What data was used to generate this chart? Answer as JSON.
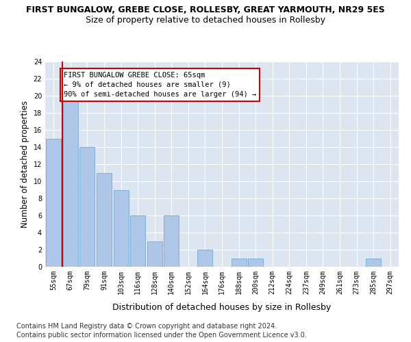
{
  "title1": "FIRST BUNGALOW, GREBE CLOSE, ROLLESBY, GREAT YARMOUTH, NR29 5ES",
  "title2": "Size of property relative to detached houses in Rollesby",
  "xlabel": "Distribution of detached houses by size in Rollesby",
  "ylabel": "Number of detached properties",
  "categories": [
    "55sqm",
    "67sqm",
    "79sqm",
    "91sqm",
    "103sqm",
    "116sqm",
    "128sqm",
    "140sqm",
    "152sqm",
    "164sqm",
    "176sqm",
    "188sqm",
    "200sqm",
    "212sqm",
    "224sqm",
    "237sqm",
    "249sqm",
    "261sqm",
    "273sqm",
    "285sqm",
    "297sqm"
  ],
  "values": [
    15,
    20,
    14,
    11,
    9,
    6,
    3,
    6,
    0,
    2,
    0,
    1,
    1,
    0,
    0,
    0,
    0,
    0,
    0,
    1,
    0
  ],
  "bar_color": "#aec6e8",
  "bar_edgecolor": "#7bafd4",
  "vline_color": "#cc0000",
  "annotation_text": "FIRST BUNGALOW GREBE CLOSE: 65sqm\n← 9% of detached houses are smaller (9)\n90% of semi-detached houses are larger (94) →",
  "annotation_box_color": "#cc0000",
  "ylim": [
    0,
    24
  ],
  "yticks": [
    0,
    2,
    4,
    6,
    8,
    10,
    12,
    14,
    16,
    18,
    20,
    22,
    24
  ],
  "footer1": "Contains HM Land Registry data © Crown copyright and database right 2024.",
  "footer2": "Contains public sector information licensed under the Open Government Licence v3.0.",
  "plot_bg_color": "#dde6f0",
  "title1_fontsize": 9,
  "title2_fontsize": 9,
  "xlabel_fontsize": 9,
  "ylabel_fontsize": 8.5,
  "tick_fontsize": 7,
  "footer_fontsize": 7,
  "annotation_fontsize": 7.5
}
